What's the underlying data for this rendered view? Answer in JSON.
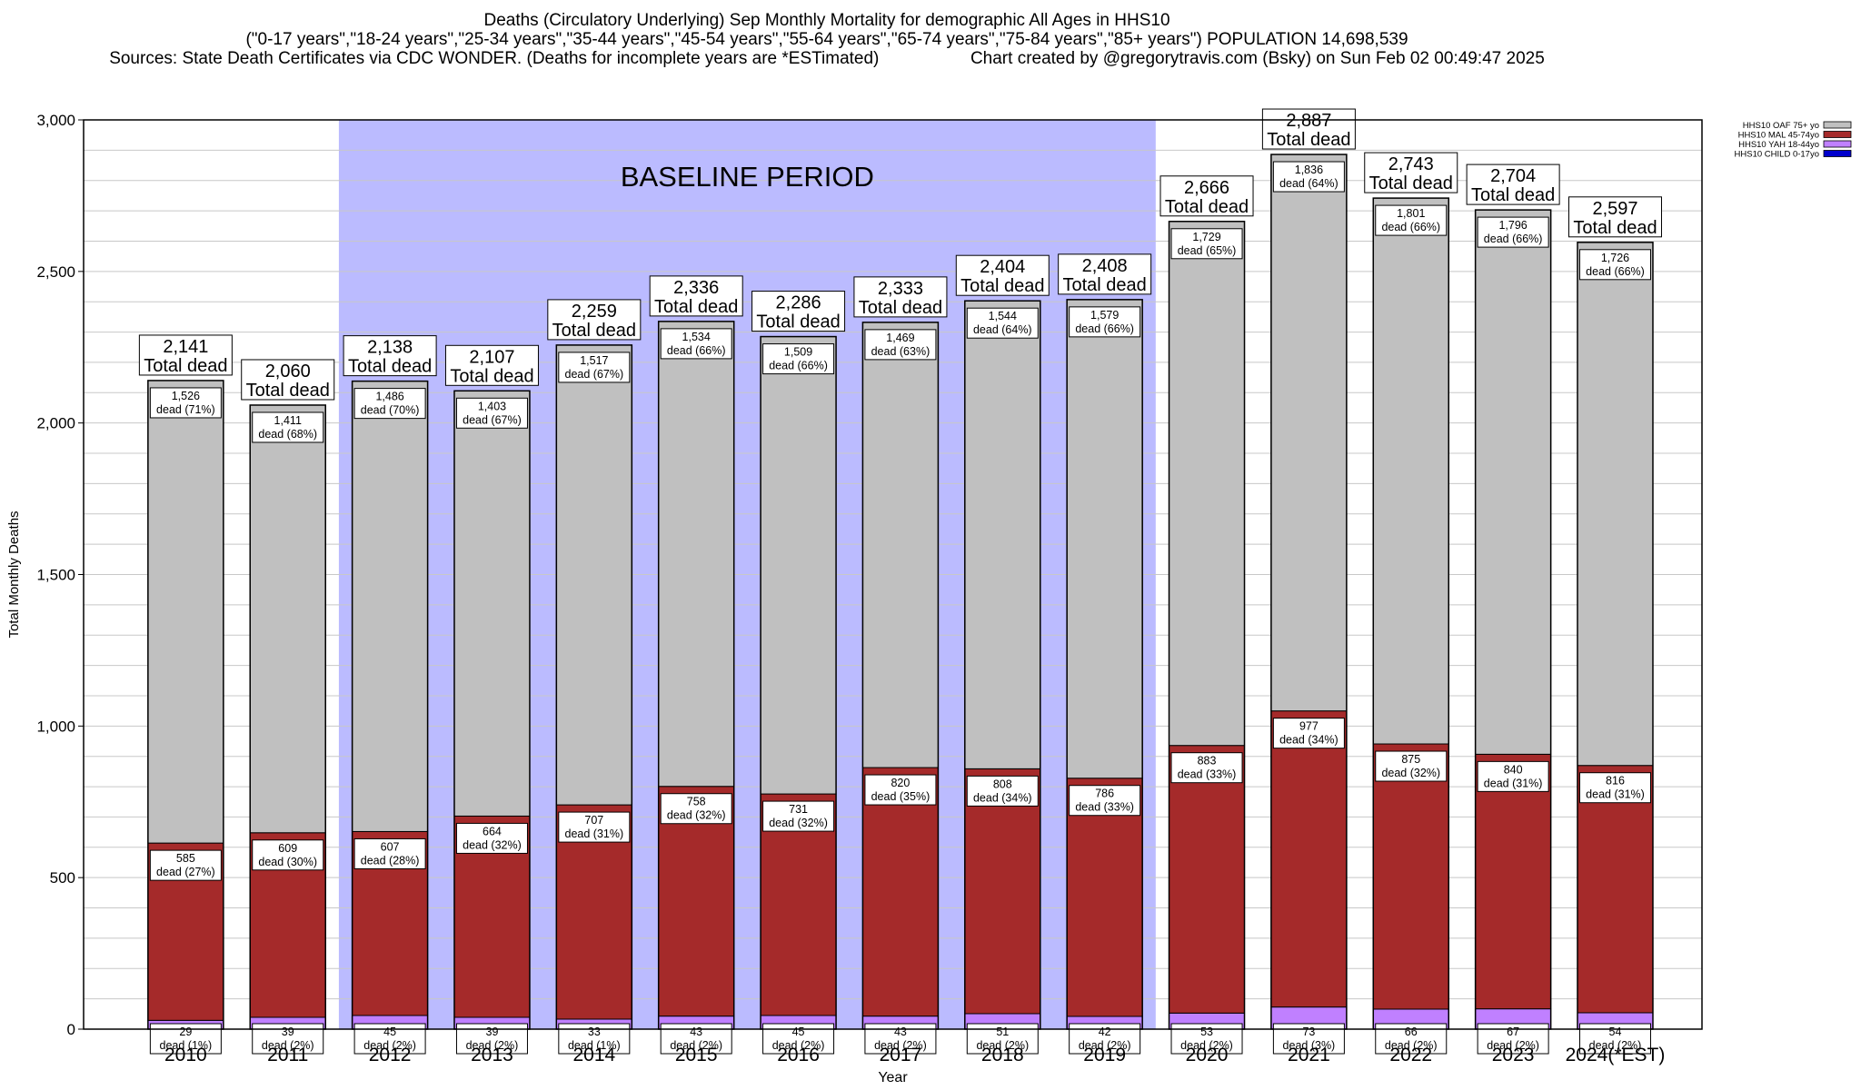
{
  "title": {
    "line1": "Deaths (Circulatory Underlying) Sep Monthly Mortality for demographic All Ages in HHS10",
    "line2": "(\"0-17 years\",\"18-24 years\",\"25-34 years\",\"35-44 years\",\"45-54 years\",\"55-64 years\",\"65-74 years\",\"75-84 years\",\"85+ years\") POPULATION 14,698,539",
    "line3_left": "Sources: State Death Certificates via CDC WONDER. (Deaths for incomplete years are *ESTimated)",
    "line3_right": "Chart created by @gregorytravis.com (Bsky) on Sun Feb 02 00:49:47 2025"
  },
  "colors": {
    "oaf": "#c0c0c0",
    "mal": "#a52a2a",
    "yah": "#c080ff",
    "child": "#0000cd",
    "baseline": "#bbbbff"
  },
  "chart_data": {
    "type": "bar",
    "stacked": true,
    "xlabel": "Year",
    "ylabel": "Total Monthly Deaths",
    "ylim": [
      0,
      3000
    ],
    "yticks": [
      0,
      500,
      1000,
      1500,
      2000,
      2500,
      3000
    ],
    "ytick_labels": [
      "0",
      "500",
      "1,000",
      "1,500",
      "2,000",
      "2,500",
      "3,000"
    ],
    "grid": true,
    "legend_position": "top-right",
    "baseline": {
      "label": "BASELINE PERIOD",
      "from": "2012",
      "to": "2019"
    },
    "total_label_suffix": "Total dead",
    "dead_word": "dead",
    "categories": [
      "2010",
      "2011",
      "2012",
      "2013",
      "2014",
      "2015",
      "2016",
      "2017",
      "2018",
      "2019",
      "2020",
      "2021",
      "2022",
      "2023",
      "2024(*EST)"
    ],
    "totals": [
      2141,
      2060,
      2138,
      2107,
      2259,
      2336,
      2286,
      2333,
      2404,
      2408,
      2666,
      2887,
      2743,
      2704,
      2597
    ],
    "total_labels": [
      "2,141",
      "2,060",
      "2,138",
      "2,107",
      "2,259",
      "2,336",
      "2,286",
      "2,333",
      "2,404",
      "2,408",
      "2,666",
      "2,887",
      "2,743",
      "2,704",
      "2,597"
    ],
    "series": [
      {
        "name": "HHS10 CHILD 0-17yo",
        "color": "#0000cd",
        "values": [
          0,
          0,
          0,
          0,
          0,
          0,
          0,
          0,
          0,
          0,
          0,
          0,
          0,
          0,
          0
        ]
      },
      {
        "name": "HHS10 YAH 18-44yo",
        "color": "#c080ff",
        "values": [
          29,
          39,
          45,
          39,
          33,
          43,
          45,
          43,
          51,
          42,
          53,
          73,
          66,
          67,
          54
        ],
        "value_labels": [
          "29",
          "39",
          "45",
          "39",
          "33",
          "43",
          "45",
          "43",
          "51",
          "42",
          "53",
          "73",
          "66",
          "67",
          "54"
        ],
        "pct_labels": [
          "(1%)",
          "(2%)",
          "(2%)",
          "(2%)",
          "(1%)",
          "(2%)",
          "(2%)",
          "(2%)",
          "(2%)",
          "(2%)",
          "(2%)",
          "(3%)",
          "(2%)",
          "(2%)",
          "(2%)"
        ]
      },
      {
        "name": "HHS10 MAL 45-74yo",
        "color": "#a52a2a",
        "values": [
          585,
          609,
          607,
          664,
          707,
          758,
          731,
          820,
          808,
          786,
          883,
          977,
          875,
          840,
          816
        ],
        "value_labels": [
          "585",
          "609",
          "607",
          "664",
          "707",
          "758",
          "731",
          "820",
          "808",
          "786",
          "883",
          "977",
          "875",
          "840",
          "816"
        ],
        "pct_labels": [
          "(27%)",
          "(30%)",
          "(28%)",
          "(32%)",
          "(31%)",
          "(32%)",
          "(32%)",
          "(35%)",
          "(34%)",
          "(33%)",
          "(33%)",
          "(34%)",
          "(32%)",
          "(31%)",
          "(31%)"
        ]
      },
      {
        "name": "HHS10 OAF 75+ yo",
        "color": "#c0c0c0",
        "values": [
          1526,
          1411,
          1486,
          1403,
          1517,
          1534,
          1509,
          1469,
          1544,
          1579,
          1729,
          1836,
          1801,
          1796,
          1726
        ],
        "value_labels": [
          "1,526",
          "1,411",
          "1,486",
          "1,403",
          "1,517",
          "1,534",
          "1,509",
          "1,469",
          "1,544",
          "1,579",
          "1,729",
          "1,836",
          "1,801",
          "1,796",
          "1,726"
        ],
        "pct_labels": [
          "(71%)",
          "(68%)",
          "(70%)",
          "(67%)",
          "(67%)",
          "(66%)",
          "(66%)",
          "(63%)",
          "(64%)",
          "(66%)",
          "(65%)",
          "(64%)",
          "(66%)",
          "(66%)",
          "(66%)"
        ]
      }
    ],
    "legend": [
      {
        "label": "HHS10 OAF 75+ yo",
        "color": "#c0c0c0"
      },
      {
        "label": "HHS10 MAL 45-74yo",
        "color": "#a52a2a"
      },
      {
        "label": "HHS10 YAH 18-44yo",
        "color": "#c080ff"
      },
      {
        "label": "HHS10 CHILD 0-17yo",
        "color": "#0000cd"
      }
    ]
  }
}
